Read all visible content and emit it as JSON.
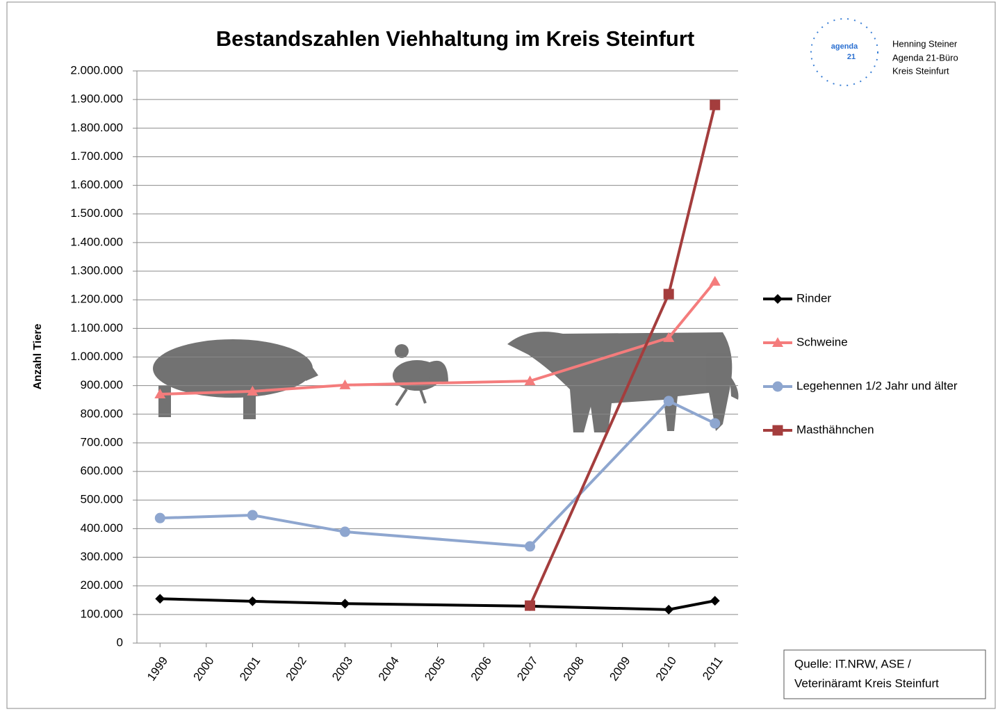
{
  "chart_data": {
    "type": "line",
    "title": "Bestandszahlen Viehhaltung im Kreis Steinfurt",
    "y_label": "Anzahl Tiere",
    "x": [
      1999,
      2001,
      2003,
      2007,
      2010,
      2011
    ],
    "xlim": [
      1998.5,
      2011.5
    ],
    "xticks": [
      1999,
      2000,
      2001,
      2002,
      2003,
      2004,
      2005,
      2006,
      2007,
      2008,
      2009,
      2010,
      2011
    ],
    "ylim": [
      0,
      2000000
    ],
    "yticks": [
      0,
      {
        "value": 100000,
        "label": "100.000"
      },
      {
        "value": 200000,
        "label": "200.000"
      },
      {
        "value": 300000,
        "label": "300.000"
      },
      {
        "value": 400000,
        "label": "400.000"
      },
      {
        "value": 500000,
        "label": "500.000"
      },
      {
        "value": 600000,
        "label": "600.000"
      },
      {
        "value": 700000,
        "label": "700.000"
      },
      {
        "value": 800000,
        "label": "800.000"
      },
      {
        "value": 900000,
        "label": "900.000"
      },
      {
        "value": 1000000,
        "label": "1.000.000"
      },
      {
        "value": 1100000,
        "label": "1.100.000"
      },
      {
        "value": 1200000,
        "label": "1.200.000"
      },
      {
        "value": 1300000,
        "label": "1.300.000"
      },
      {
        "value": 1400000,
        "label": "1.400.000"
      },
      {
        "value": 1500000,
        "label": "1.500.000"
      },
      {
        "value": 1600000,
        "label": "1.600.000"
      },
      {
        "value": 1700000,
        "label": "1.700.000"
      },
      {
        "value": 1800000,
        "label": "1.800.000"
      },
      {
        "value": 1900000,
        "label": "1.900.000"
      },
      {
        "value": 2000000,
        "label": "2.000.000"
      }
    ],
    "grid": true,
    "legend": "right",
    "series": [
      {
        "name": "Rinder",
        "color": "#000000",
        "marker": "diamond",
        "values": [
          155000,
          146000,
          138000,
          129000,
          117000,
          148000
        ]
      },
      {
        "name": "Schweine",
        "color": "#f47c7c",
        "marker": "triangle",
        "values": [
          870000,
          880000,
          902000,
          916000,
          1067000,
          1264000
        ]
      },
      {
        "name": "Legehennen  1/2 Jahr und älter",
        "color": "#8ea6cf",
        "marker": "circle",
        "values": [
          437000,
          447000,
          389000,
          338000,
          846000,
          768000
        ]
      },
      {
        "name": "Masthähnchen",
        "color": "#a43d3d",
        "marker": "square",
        "values": [
          null,
          null,
          null,
          131000,
          1220000,
          1881000
        ]
      }
    ],
    "source": [
      "Quelle: IT.NRW, ASE /",
      "Veterinäramt Kreis Steinfurt"
    ]
  },
  "logo": {
    "mark": [
      "agenda",
      "21"
    ],
    "lines": [
      "Henning Steiner",
      "Agenda 21-Büro",
      "Kreis Steinfurt"
    ]
  }
}
